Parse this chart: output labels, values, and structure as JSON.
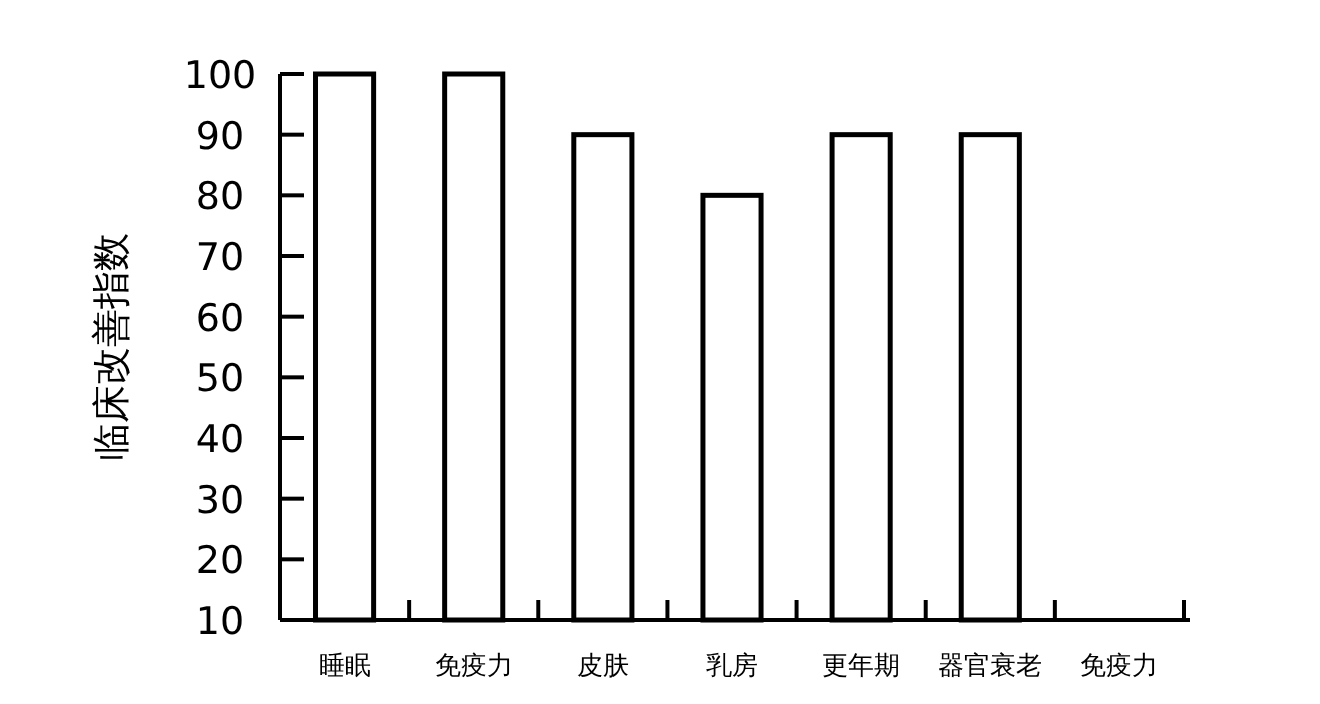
{
  "chart_data": {
    "type": "bar",
    "ylabel": "临床改善指数",
    "categories": [
      "睡眠",
      "免疫力",
      "皮肤",
      "乳房",
      "更年期",
      "器官衰老",
      "免疫力"
    ],
    "values": [
      100,
      100,
      90,
      80,
      90,
      90,
      null
    ],
    "color": "#ffffff",
    "ylim": [
      10,
      100
    ],
    "yticks": [
      10,
      20,
      30,
      40,
      50,
      60,
      70,
      80,
      90,
      100
    ],
    "grid": false
  }
}
